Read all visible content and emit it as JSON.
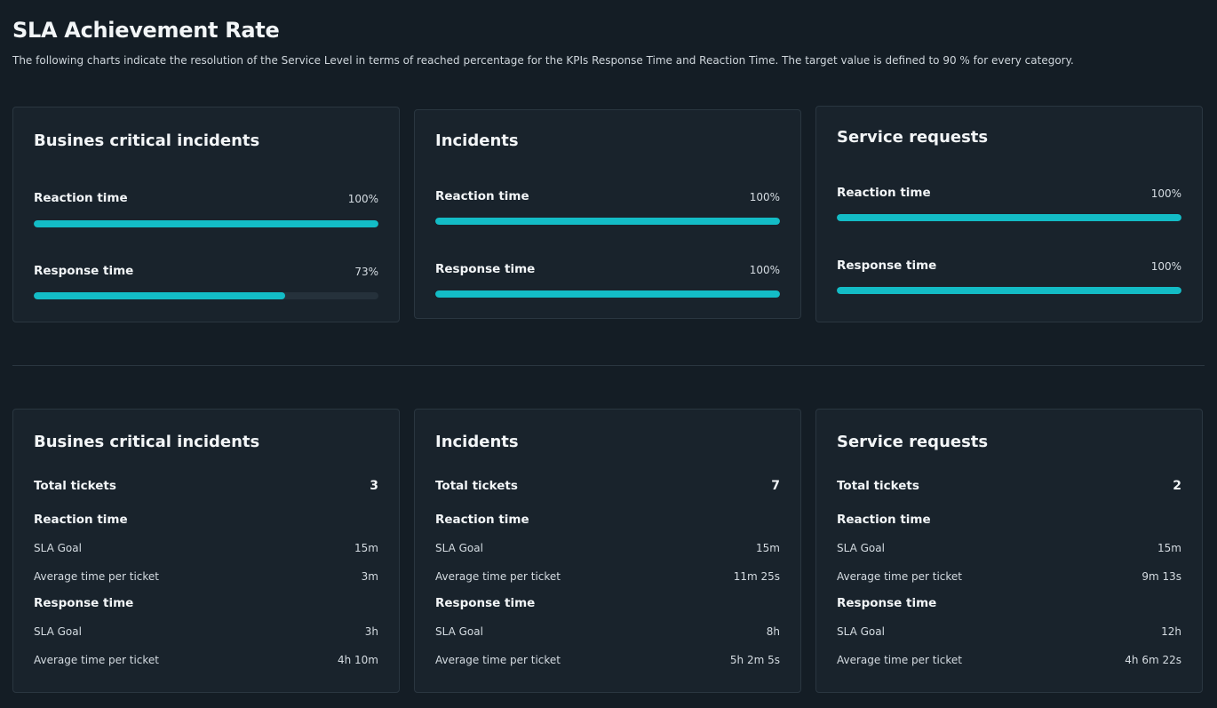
{
  "header": {
    "title": "SLA Achievement Rate",
    "description": "The following charts indicate the resolution of the Service Level in terms of reached percentage for the KPIs Response Time and Reaction Time. The target value is defined to 90 % for every category."
  },
  "achievement": [
    {
      "title": "Busines critical incidents",
      "reaction": {
        "label": "Reaction time",
        "value_text": "100%",
        "percent": 100
      },
      "response": {
        "label": "Response time",
        "value_text": "73%",
        "percent": 73
      }
    },
    {
      "title": "Incidents",
      "reaction": {
        "label": "Reaction time",
        "value_text": "100%",
        "percent": 100
      },
      "response": {
        "label": "Response time",
        "value_text": "100%",
        "percent": 100
      }
    },
    {
      "title": "Service requests",
      "reaction": {
        "label": "Reaction time",
        "value_text": "100%",
        "percent": 100
      },
      "response": {
        "label": "Response time",
        "value_text": "100%",
        "percent": 100
      }
    }
  ],
  "stats": [
    {
      "title": "Busines critical incidents",
      "total_label": "Total tickets",
      "total": "3",
      "reaction_label": "Reaction time",
      "reaction_goal_label": "SLA Goal",
      "reaction_goal": "15m",
      "reaction_avg_label": "Average time per ticket",
      "reaction_avg": "3m",
      "response_label": "Response time",
      "response_goal_label": "SLA Goal",
      "response_goal": "3h",
      "response_avg_label": "Average time per ticket",
      "response_avg": "4h 10m"
    },
    {
      "title": "Incidents",
      "total_label": "Total tickets",
      "total": "7",
      "reaction_label": "Reaction time",
      "reaction_goal_label": "SLA Goal",
      "reaction_goal": "15m",
      "reaction_avg_label": "Average time per ticket",
      "reaction_avg": "11m 25s",
      "response_label": "Response time",
      "response_goal_label": "SLA Goal",
      "response_goal": "8h",
      "response_avg_label": "Average time per ticket",
      "response_avg": "5h 2m 5s"
    },
    {
      "title": "Service requests",
      "total_label": "Total tickets",
      "total": "2",
      "reaction_label": "Reaction time",
      "reaction_goal_label": "SLA Goal",
      "reaction_goal": "15m",
      "reaction_avg_label": "Average time per ticket",
      "reaction_avg": "9m 13s",
      "response_label": "Response time",
      "response_goal_label": "SLA Goal",
      "response_goal": "12h",
      "response_avg_label": "Average time per ticket",
      "response_avg": "4h 6m 22s"
    }
  ],
  "colors": {
    "background": "#141d25",
    "card": "#19232c",
    "bar_fill": "#13bcc6",
    "bar_track": "#25313b"
  }
}
